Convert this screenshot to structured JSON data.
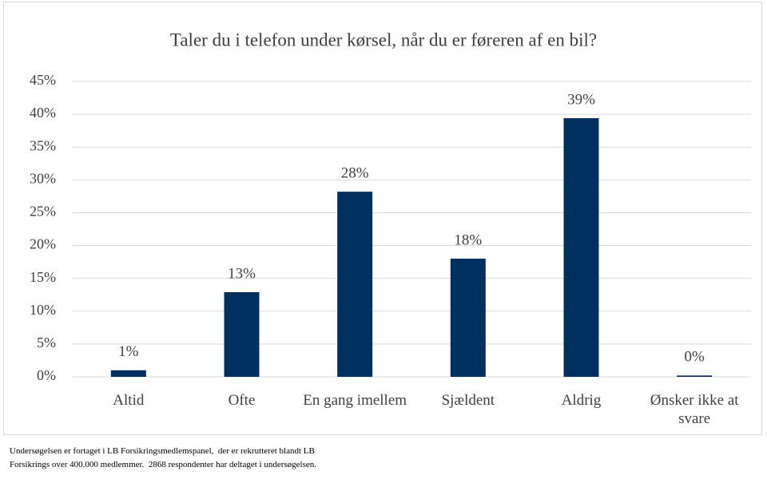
{
  "chart_data": {
    "type": "bar",
    "title": "Taler du i telefon under kørsel, når du er føreren af en bil?",
    "categories": [
      "Altid",
      "Ofte",
      "En gang imellem",
      "Sjældent",
      "Aldrig",
      "Ønsker ikke at svare"
    ],
    "values": [
      1,
      12.9,
      28.2,
      18,
      39.4,
      0.2
    ],
    "value_labels": [
      "1%",
      "13%",
      "28%",
      "18%",
      "39%",
      "0%"
    ],
    "color": "#003060",
    "ylim": [
      0,
      45
    ],
    "yticks": [
      {
        "value": 0,
        "label": "0%"
      },
      {
        "value": 5,
        "label": "5%"
      },
      {
        "value": 10,
        "label": "10%"
      },
      {
        "value": 15,
        "label": "15%"
      },
      {
        "value": 20,
        "label": "20%"
      },
      {
        "value": 25,
        "label": "25%"
      },
      {
        "value": 30,
        "label": "30%"
      },
      {
        "value": 35,
        "label": "35%"
      },
      {
        "value": 40,
        "label": "40%"
      },
      {
        "value": 45,
        "label": "45%"
      }
    ],
    "grid": true,
    "footnote": [
      "Undersøgelsen er fortaget i LB Forsikringsmedlemspanel,  der er rekrutteret blandt LB",
      "Forsikrings over 400.000 medlemmer.  2868 respondenter har deltaget i undersøgelsen."
    ]
  }
}
